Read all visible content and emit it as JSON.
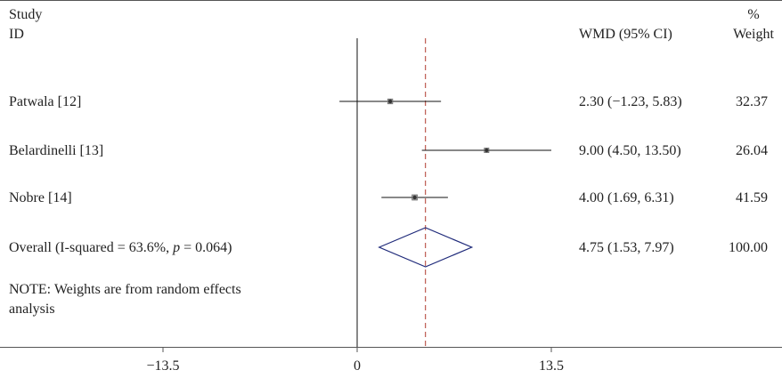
{
  "header": {
    "study_line1": "Study",
    "study_line2": "ID",
    "wmd_label": "WMD (95% CI)",
    "weight_line1": "%",
    "weight_line2": "Weight"
  },
  "note": {
    "line1": "NOTE: Weights are from random effects",
    "line2": "analysis"
  },
  "colors": {
    "ci_line": "#111111",
    "reference_line": "#b03a2e",
    "diamond": "#1f2a7a",
    "point": "#333333"
  },
  "chart_data": {
    "type": "forest",
    "axis": {
      "ticks": [
        -13.5,
        0,
        13.5
      ],
      "tick_labels": [
        "−13.5",
        "0",
        "13.5"
      ],
      "null_value": 0
    },
    "pooled_estimate": 4.75,
    "studies": [
      {
        "id": "Patwala [12]",
        "wmd": 2.3,
        "lower": -1.23,
        "upper": 5.83,
        "ci_text": "2.30 (−1.23, 5.83)",
        "weight": 32.37,
        "weight_text": "32.37"
      },
      {
        "id": "Belardinelli [13]",
        "wmd": 9.0,
        "lower": 4.5,
        "upper": 13.5,
        "ci_text": "9.00 (4.50, 13.50)",
        "weight": 26.04,
        "weight_text": "26.04"
      },
      {
        "id": "Nobre [14]",
        "wmd": 4.0,
        "lower": 1.69,
        "upper": 6.31,
        "ci_text": "4.00 (1.69, 6.31)",
        "weight": 41.59,
        "weight_text": "41.59"
      }
    ],
    "overall": {
      "label_prefix": "Overall (I-squared = 63.6%, ",
      "label_p": "p",
      "label_suffix": " = 0.064)",
      "wmd": 4.75,
      "lower": 1.53,
      "upper": 7.97,
      "ci_text": "4.75 (1.53, 7.97)",
      "weight_text": "100.00"
    }
  }
}
